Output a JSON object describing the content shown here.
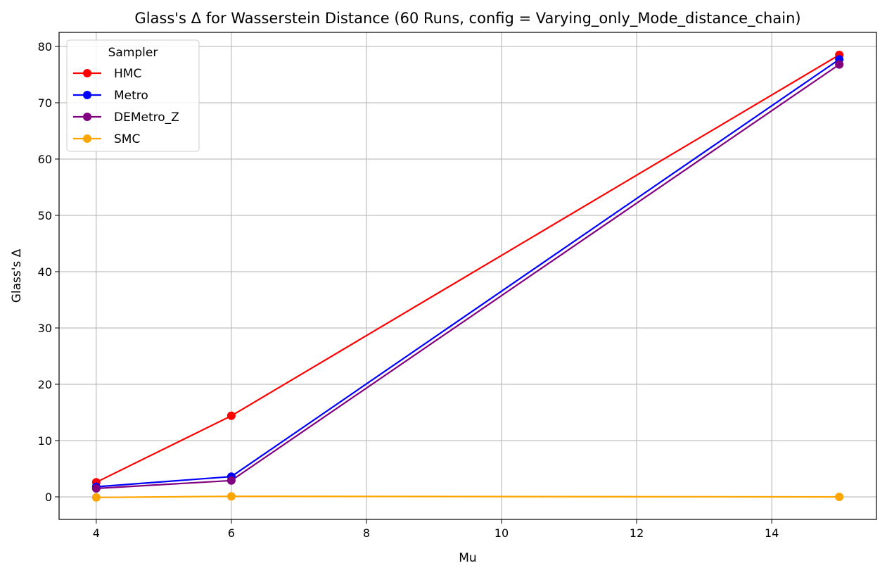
{
  "chart_data": {
    "type": "line",
    "title": "Glass's Δ for Wasserstein Distance (60 Runs, config = Varying_only_Mode_distance_chain)",
    "xlabel": "Mu",
    "ylabel": "Glass's Δ",
    "x": [
      4,
      6,
      15
    ],
    "xlim": [
      3.45,
      15.55
    ],
    "ylim": [
      -4,
      82.5
    ],
    "xticks": [
      4,
      6,
      8,
      10,
      12,
      14
    ],
    "yticks": [
      0,
      10,
      20,
      30,
      40,
      50,
      60,
      70,
      80
    ],
    "grid": true,
    "legend": {
      "title": "Sampler",
      "placement": "top-left"
    },
    "series": [
      {
        "name": "HMC",
        "color": "#ff0000",
        "values": [
          2.6,
          14.4,
          78.5
        ]
      },
      {
        "name": "Metro",
        "color": "#0000ff",
        "values": [
          1.8,
          3.6,
          77.7
        ]
      },
      {
        "name": "DEMetro_Z",
        "color": "#800080",
        "values": [
          1.5,
          2.9,
          76.8
        ]
      },
      {
        "name": "SMC",
        "color": "#ffa500",
        "values": [
          -0.1,
          0.1,
          0.0
        ]
      }
    ]
  }
}
